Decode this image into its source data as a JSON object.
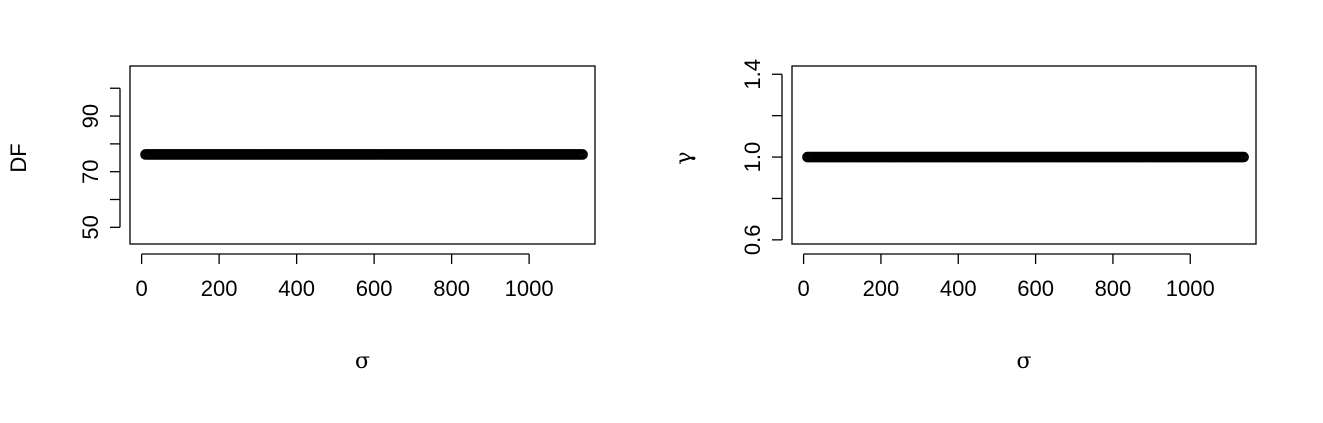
{
  "chart_data": [
    {
      "type": "scatter",
      "title": "",
      "xlabel": "σ",
      "ylabel": "DF",
      "xlim": [
        -30,
        1170
      ],
      "ylim": [
        44,
        108
      ],
      "x_ticks": [
        0,
        200,
        400,
        600,
        800,
        1000
      ],
      "x_tick_labels": [
        "0",
        "200",
        "400",
        "600",
        "800",
        "1000"
      ],
      "y_ticks": [
        50,
        60,
        70,
        80,
        90,
        100
      ],
      "y_tick_labels": [
        "50",
        "",
        "70",
        "",
        "90",
        ""
      ],
      "grid": false,
      "marker": "open-circle",
      "color": "#000000",
      "series": [
        {
          "x_range": [
            10,
            1140
          ],
          "y": 76.2
        }
      ]
    },
    {
      "type": "scatter",
      "title": "",
      "xlabel": "σ",
      "ylabel": "γ",
      "xlim": [
        -30,
        1170
      ],
      "ylim": [
        0.58,
        1.44
      ],
      "x_ticks": [
        0,
        200,
        400,
        600,
        800,
        1000
      ],
      "x_tick_labels": [
        "0",
        "200",
        "400",
        "600",
        "800",
        "1000"
      ],
      "y_ticks": [
        0.6,
        0.8,
        1.0,
        1.2,
        1.4
      ],
      "y_tick_labels": [
        "0.6",
        "",
        "1.0",
        "",
        "1.4"
      ],
      "grid": false,
      "marker": "open-circle",
      "color": "#000000",
      "series": [
        {
          "x_range": [
            10,
            1140
          ],
          "y": 1.0
        }
      ]
    }
  ]
}
